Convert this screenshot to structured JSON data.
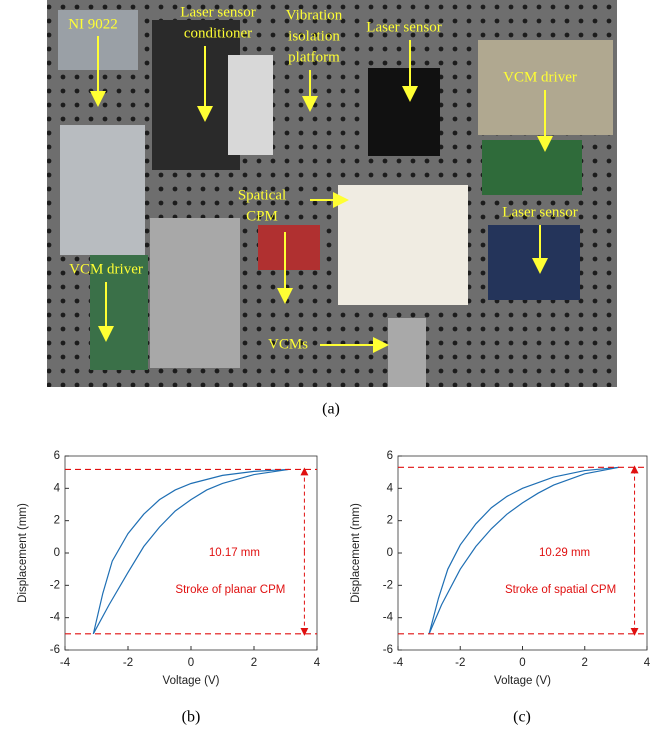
{
  "photo": {
    "caption": "(a)",
    "labels": [
      {
        "lines": [
          "NI 9022"
        ]
      },
      {
        "lines": [
          "Laser sensor",
          "conditioner"
        ]
      },
      {
        "lines": [
          "Vibration",
          "isolation",
          "platform"
        ]
      },
      {
        "lines": [
          "Laser sensor"
        ]
      },
      {
        "lines": [
          "VCM driver"
        ]
      },
      {
        "lines": [
          "Spatical",
          "CPM"
        ]
      },
      {
        "lines": [
          "Laser sensor"
        ]
      },
      {
        "lines": [
          "VCM driver"
        ]
      },
      {
        "lines": [
          "VCMs"
        ]
      }
    ]
  },
  "chart_data": [
    {
      "type": "line",
      "caption": "(b)",
      "x_label": "Voltage (V)",
      "y_label": "Displacement (mm)",
      "xlim": [
        -4,
        4
      ],
      "ylim": [
        -6,
        6
      ],
      "xticks": [
        -4,
        -2,
        0,
        2,
        4
      ],
      "yticks": [
        -6,
        -4,
        -2,
        0,
        2,
        4,
        6
      ],
      "hlines": [
        5.17,
        -5
      ],
      "line_color": "#e01010",
      "annotations": [
        "10.17 mm",
        "Stroke of planar CPM"
      ],
      "series": [
        {
          "color": "#1f6fb4",
          "x": [
            -3.1,
            -2.8,
            -2.5,
            -2,
            -1.5,
            -1,
            -0.5,
            0,
            1,
            2,
            3.1
          ],
          "values": [
            -5,
            -2.5,
            -0.5,
            1.2,
            2.4,
            3.3,
            3.9,
            4.3,
            4.8,
            5.05,
            5.17
          ]
        },
        {
          "color": "#1f6fb4",
          "x": [
            -3.1,
            -2.6,
            -2,
            -1.5,
            -1,
            -0.5,
            0,
            0.5,
            1,
            2,
            3.1
          ],
          "values": [
            -5,
            -3.2,
            -1.2,
            0.4,
            1.6,
            2.6,
            3.3,
            3.9,
            4.3,
            4.85,
            5.17
          ]
        }
      ]
    },
    {
      "type": "line",
      "caption": "(c)",
      "x_label": "Voltage (V)",
      "y_label": "Displacement (mm)",
      "xlim": [
        -4,
        4
      ],
      "ylim": [
        -6,
        6
      ],
      "xticks": [
        -4,
        -2,
        0,
        2,
        4
      ],
      "yticks": [
        -6,
        -4,
        -2,
        0,
        2,
        4,
        6
      ],
      "hlines": [
        5.3,
        -5
      ],
      "line_color": "#e01010",
      "annotations": [
        "10.29 mm",
        "Stroke of spatial CPM"
      ],
      "series": [
        {
          "color": "#1f6fb4",
          "x": [
            -3,
            -2.7,
            -2.4,
            -2,
            -1.5,
            -1,
            -0.5,
            0,
            1,
            2,
            3.1
          ],
          "values": [
            -5,
            -2.8,
            -1,
            0.5,
            1.8,
            2.8,
            3.5,
            4,
            4.7,
            5.1,
            5.3
          ]
        },
        {
          "color": "#1f6fb4",
          "x": [
            -3,
            -2.6,
            -2,
            -1.5,
            -1,
            -0.5,
            0,
            0.5,
            1,
            2,
            3.1
          ],
          "values": [
            -5,
            -3.2,
            -1,
            0.4,
            1.5,
            2.4,
            3.1,
            3.7,
            4.2,
            4.9,
            5.3
          ]
        }
      ]
    }
  ]
}
